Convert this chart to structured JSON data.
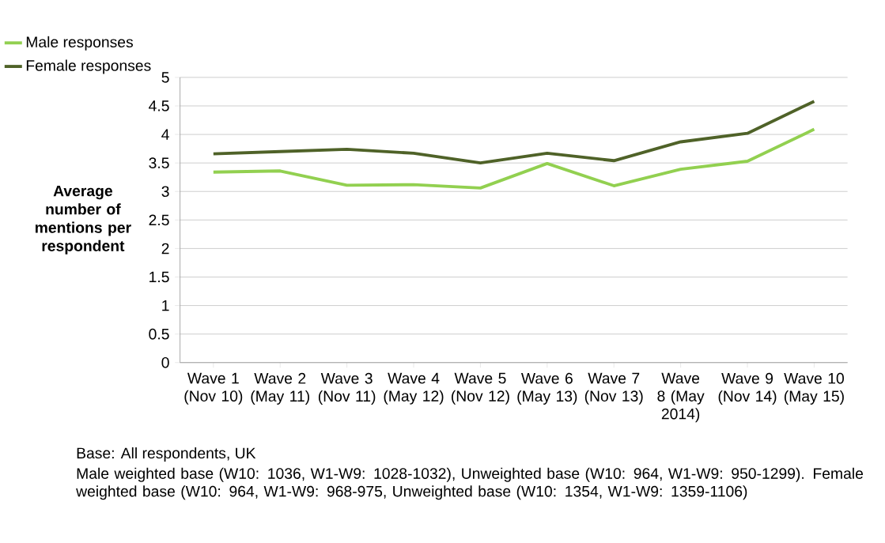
{
  "chart_data": {
    "type": "line",
    "ylabel": "Average number of mentions per respondent",
    "categories": [
      "Wave 1 (Nov 10)",
      "Wave 2 (May 11)",
      "Wave 3 (Nov 11)",
      "Wave 4 (May 12)",
      "Wave 5 (Nov 12)",
      "Wave 6 (May 13)",
      "Wave 7 (Nov 13)",
      "Wave 8 (May 2014)",
      "Wave 9 (Nov 14)",
      "Wave 10 (May 15)"
    ],
    "series": [
      {
        "name": "Male responses",
        "color": "#92d050",
        "values": [
          3.34,
          3.36,
          3.11,
          3.12,
          3.06,
          3.49,
          3.1,
          3.39,
          3.53,
          4.09
        ]
      },
      {
        "name": "Female responses",
        "color": "#4f6228",
        "values": [
          3.66,
          3.7,
          3.74,
          3.67,
          3.5,
          3.67,
          3.54,
          3.87,
          4.02,
          4.58
        ]
      }
    ],
    "ylim": [
      0,
      5
    ],
    "yticks": [
      0,
      0.5,
      1,
      1.5,
      2,
      2.5,
      3,
      3.5,
      4,
      4.5,
      5
    ],
    "grid": "y",
    "legend": "top left",
    "marker": "none",
    "line_style": "solid",
    "annotations": [
      "Base: All respondents, UK",
      "Male weighted base (W10: 1036, W1-W9: 1028-1032), Unweighted base (W10: 964, W1-W9: 950-1299).  Female weighted base (W10: 964, W1-W9: 968-975, Unweighted base (W10: 1354, W1-W9: 1359-1106)"
    ]
  }
}
